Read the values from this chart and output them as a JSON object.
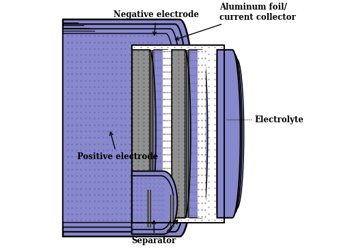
{
  "bg_color": "#ffffff",
  "blue": "#8888cc",
  "blue_dark": "#6666aa",
  "foil_color": "#222222",
  "sep_color": "#ffffff",
  "label_neg": "Negative electrode",
  "label_pos": "Positive electrode",
  "label_al": "Aluminum foil/\ncurrent collector",
  "label_elec": "Electrolyte",
  "label_sep": "Separator"
}
